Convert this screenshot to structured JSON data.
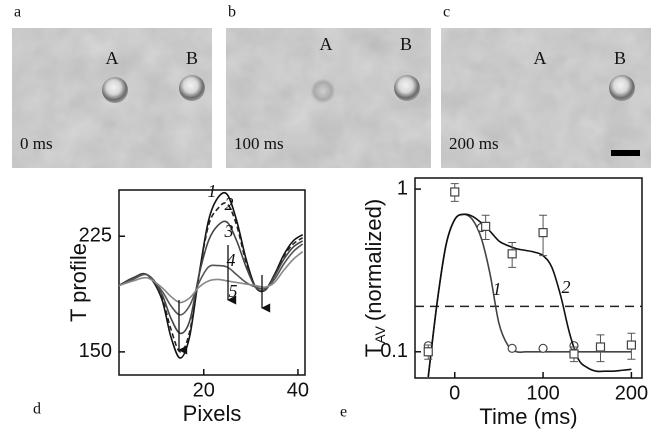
{
  "panels": [
    {
      "letter": "a",
      "labels": [
        "A",
        "B"
      ],
      "time": "0 ms"
    },
    {
      "letter": "b",
      "labels": [
        "A",
        "B"
      ],
      "time": "100 ms"
    },
    {
      "letter": "c",
      "labels": [
        "A",
        "B"
      ],
      "time": "200 ms"
    }
  ],
  "chart_data": [
    {
      "type": "line",
      "panel": "d",
      "xlabel": "Pixels",
      "ylabel": "T profile",
      "xlim": [
        2,
        41.5
      ],
      "xticks": [
        20,
        40
      ],
      "ylim": [
        135,
        255
      ],
      "yticks": [
        150,
        225
      ],
      "x": [
        2,
        5,
        8,
        11,
        13,
        15,
        17,
        19,
        21,
        23,
        25,
        27,
        29,
        31,
        33,
        35,
        37,
        39,
        41
      ],
      "series": [
        {
          "name": "1",
          "color": "#111111",
          "values": [
            193,
            198,
            200,
            185,
            160,
            146,
            160,
            200,
            235,
            250,
            252,
            235,
            210,
            192,
            190,
            200,
            213,
            222,
            226
          ]
        },
        {
          "name": "2",
          "color": "#222222",
          "dash": true,
          "values": [
            193,
            198,
            200,
            186,
            165,
            150,
            163,
            200,
            232,
            243,
            246,
            232,
            208,
            192,
            190,
            200,
            212,
            220,
            224
          ]
        },
        {
          "name": "3",
          "color": "#444444",
          "values": [
            193,
            198,
            200,
            188,
            172,
            162,
            170,
            200,
            222,
            232,
            234,
            222,
            205,
            192,
            190,
            199,
            210,
            218,
            222
          ]
        },
        {
          "name": "4",
          "color": "#555555",
          "values": [
            193,
            197,
            200,
            190,
            180,
            174,
            180,
            195,
            205,
            206,
            205,
            200,
            195,
            192,
            191,
            197,
            207,
            215,
            220
          ]
        },
        {
          "name": "5",
          "color": "#888888",
          "values": [
            193,
            196,
            198,
            192,
            186,
            182,
            185,
            192,
            196,
            197,
            196,
            195,
            194,
            193,
            192,
            195,
            203,
            210,
            215
          ]
        }
      ]
    },
    {
      "type": "line",
      "panel": "e",
      "xlabel": "Time (ms)",
      "ylabel": "T",
      "ylabel_subscript": "AV",
      "ylabel_suffix": "(normalized)",
      "yscale": "log",
      "xlim": [
        -45,
        212
      ],
      "xticks": [
        0,
        100,
        200
      ],
      "ylim": [
        0.069,
        1.17
      ],
      "yticks": [
        0.1,
        1
      ],
      "hline": 0.19,
      "x": [
        -30,
        -20,
        -10,
        0,
        10,
        20,
        30,
        40,
        50,
        60,
        70,
        80,
        90,
        100,
        110,
        120,
        130,
        140,
        150,
        160,
        170,
        180,
        190,
        200
      ],
      "series": [
        {
          "name": "1",
          "color": "#444444",
          "marker": "circle",
          "values": [
            0.07,
            0.2,
            0.45,
            0.65,
            0.7,
            0.65,
            0.5,
            0.3,
            0.15,
            0.11,
            0.1,
            0.1,
            0.1,
            0.1,
            0.1,
            0.1,
            0.1,
            0.1,
            0.1,
            0.1,
            0.1,
            0.1,
            0.1,
            0.1
          ],
          "points": {
            "x": [
              -30,
              30,
              65,
              100,
              135
            ],
            "values": [
              0.109,
              0.58,
              0.105,
              0.105,
              0.109
            ]
          }
        },
        {
          "name": "2",
          "color": "#111111",
          "marker": "square",
          "values": [
            0.07,
            0.2,
            0.45,
            0.65,
            0.7,
            0.68,
            0.62,
            0.55,
            0.48,
            0.45,
            0.43,
            0.42,
            0.41,
            0.39,
            0.33,
            0.22,
            0.13,
            0.09,
            0.08,
            0.076,
            0.076,
            0.076,
            0.077,
            0.078
          ],
          "points": {
            "x": [
              -30,
              0,
              35,
              65,
              100,
              135,
              165,
              200
            ],
            "values": [
              0.1,
              0.96,
              0.59,
              0.4,
              0.54,
              0.097,
              0.107,
              0.11
            ],
            "errors": [
              0.01,
              0.12,
              0.1,
              0.07,
              0.15,
              0.01,
              0.02,
              0.02
            ]
          }
        }
      ]
    }
  ]
}
